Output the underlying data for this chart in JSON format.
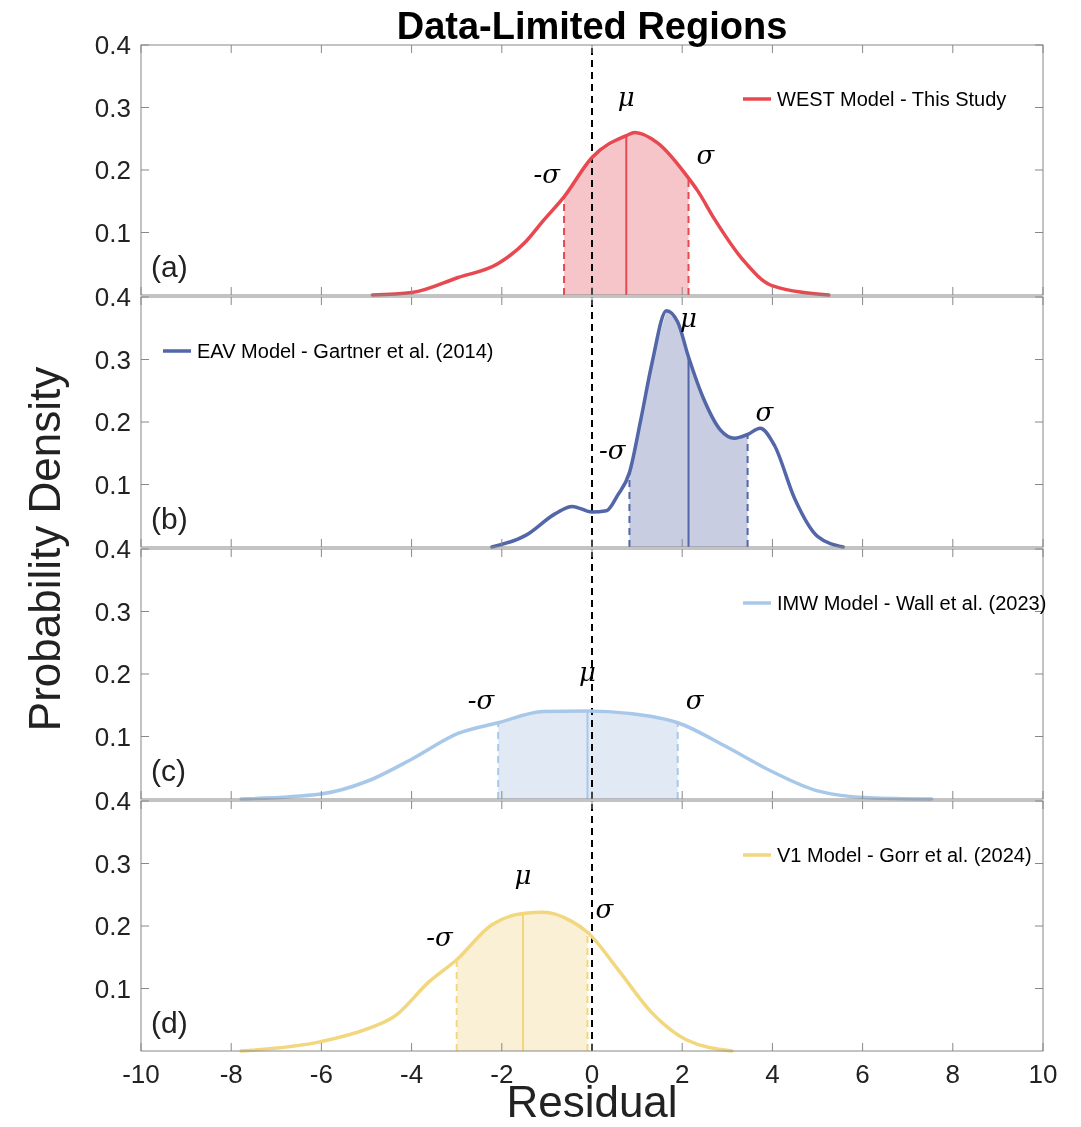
{
  "chart_data": [
    {
      "type": "line",
      "title": "Data-Limited Regions",
      "xlim": [
        -10,
        10
      ],
      "xticks": [
        -10,
        -8,
        -6,
        -4,
        -2,
        0,
        2,
        4,
        6,
        8,
        10
      ],
      "ylim": [
        0,
        0.4
      ],
      "yticks": [
        0.1,
        0.2,
        0.3,
        0.4
      ],
      "tick_labels": "y",
      "legend": "top right",
      "annotations": [
        "(a)"
      ],
      "series": [
        {
          "name": "WEST Model - This Study",
          "type": "line",
          "color": "#e8484f",
          "x": [
            -4.87,
            -3.99,
            -2.97,
            -2.09,
            -1.46,
            -1.08,
            -0.62,
            0,
            0.76,
            0.95,
            1.46,
            2.14,
            2.34,
            2.72,
            3.35,
            3.99,
            5.25
          ],
          "values": [
            0,
            0.004,
            0.028,
            0.05,
            0.086,
            0.119,
            0.157,
            0.22,
            0.255,
            0.26,
            0.243,
            0.187,
            0.167,
            0.121,
            0.056,
            0.015,
            0
          ]
        },
        {
          "type": "area",
          "color": "#f5c5c9",
          "x": [
            -0.62,
            0,
            0.76,
            0.95,
            1.46,
            2.14
          ],
          "values": [
            0.157,
            0.22,
            0.255,
            0.26,
            0.243,
            0.187
          ]
        }
      ],
      "ref_lines": [
        {
          "axis": "x",
          "value": 0,
          "color": "#000000",
          "line_style": "dashed"
        },
        {
          "axis": "x",
          "value": -0.62,
          "label": "-σ",
          "color": "#e8484f",
          "line_style": "dashed"
        },
        {
          "axis": "x",
          "value": 0.76,
          "label": "μ",
          "color": "#e8484f",
          "line_style": "solid"
        },
        {
          "axis": "x",
          "value": 2.14,
          "label": "σ",
          "color": "#e8484f",
          "line_style": "dashed"
        }
      ]
    },
    {
      "type": "line",
      "ylabel": "Probability Density",
      "xlim": [
        -10,
        10
      ],
      "xticks": [
        -10,
        -8,
        -6,
        -4,
        -2,
        0,
        2,
        4,
        6,
        8,
        10
      ],
      "ylim": [
        0,
        0.4
      ],
      "yticks": [
        0.1,
        0.2,
        0.3,
        0.4
      ],
      "tick_labels": "y",
      "legend": "top left",
      "annotations": [
        "(b)"
      ],
      "series": [
        {
          "name": "EAV Model - Gartner et al. (2014)",
          "type": "line",
          "color": "#5266a8",
          "x": [
            -2.22,
            -1.46,
            -0.82,
            -0.44,
            0,
            0.32,
            0.57,
            0.83,
            1.08,
            1.33,
            1.65,
            1.9,
            2.14,
            2.47,
            2.85,
            3.16,
            3.45,
            3.73,
            4.05,
            4.49,
            5.0,
            5.57
          ],
          "values": [
            0,
            0.019,
            0.053,
            0.065,
            0.056,
            0.058,
            0.083,
            0.119,
            0.203,
            0.294,
            0.378,
            0.36,
            0.304,
            0.238,
            0.187,
            0.174,
            0.18,
            0.19,
            0.162,
            0.078,
            0.017,
            0
          ]
        },
        {
          "type": "area",
          "color": "#c8cde1",
          "x": [
            0.83,
            1.08,
            1.33,
            1.65,
            1.9,
            2.14,
            2.47,
            2.85,
            3.16,
            3.45
          ],
          "values": [
            0.119,
            0.203,
            0.294,
            0.378,
            0.36,
            0.304,
            0.238,
            0.187,
            0.174,
            0.18
          ]
        }
      ],
      "ref_lines": [
        {
          "axis": "x",
          "value": 0,
          "color": "#000000",
          "line_style": "dashed"
        },
        {
          "axis": "x",
          "value": 0.83,
          "label": "-σ",
          "color": "#5266a8",
          "line_style": "dashed"
        },
        {
          "axis": "x",
          "value": 2.14,
          "label": "μ",
          "color": "#5266a8",
          "line_style": "solid"
        },
        {
          "axis": "x",
          "value": 3.45,
          "label": "σ",
          "color": "#5266a8",
          "line_style": "dashed"
        }
      ]
    },
    {
      "type": "line",
      "xlim": [
        -10,
        10
      ],
      "xticks": [
        -10,
        -8,
        -6,
        -4,
        -2,
        0,
        2,
        4,
        6,
        8,
        10
      ],
      "ylim": [
        0,
        0.4
      ],
      "yticks": [
        0.1,
        0.2,
        0.3,
        0.4
      ],
      "tick_labels": "y",
      "legend": "top right",
      "annotations": [
        "(c)"
      ],
      "series": [
        {
          "name": "IMW Model - Wall et al. (2023)",
          "type": "line",
          "color": "#a8c8ea",
          "x": [
            -7.78,
            -6.01,
            -5.0,
            -3.99,
            -2.97,
            -2.08,
            -1.08,
            -0.1,
            0.82,
            1.9,
            2.97,
            3.99,
            5.0,
            6.14,
            7.53
          ],
          "values": [
            0,
            0.008,
            0.028,
            0.064,
            0.105,
            0.122,
            0.14,
            0.141,
            0.137,
            0.122,
            0.084,
            0.044,
            0.013,
            0.002,
            0
          ]
        },
        {
          "type": "area",
          "color": "#e1e9f5",
          "x": [
            -2.08,
            -1.08,
            -0.1,
            0.82,
            1.9
          ],
          "values": [
            0.122,
            0.14,
            0.141,
            0.137,
            0.122
          ]
        }
      ],
      "ref_lines": [
        {
          "axis": "x",
          "value": 0,
          "color": "#000000",
          "line_style": "dashed"
        },
        {
          "axis": "x",
          "value": -2.08,
          "label": "-σ",
          "color": "#a8c8ea",
          "line_style": "dashed"
        },
        {
          "axis": "x",
          "value": -0.1,
          "label": "μ",
          "color": "#a8c8ea",
          "line_style": "solid"
        },
        {
          "axis": "x",
          "value": 1.9,
          "label": "σ",
          "color": "#a8c8ea",
          "line_style": "dashed"
        }
      ]
    },
    {
      "type": "line",
      "xlabel": "Residual",
      "xlim": [
        -10,
        10
      ],
      "xticks": [
        -10,
        -8,
        -6,
        -4,
        -2,
        0,
        2,
        4,
        6,
        8,
        10
      ],
      "ylim": [
        0,
        0.4
      ],
      "yticks": [
        0.1,
        0.2,
        0.3,
        0.4
      ],
      "legend": "top right",
      "annotations": [
        "(d)"
      ],
      "series": [
        {
          "name": "V1 Model - Gorr et al. (2024)",
          "type": "line",
          "color": "#f2d77f",
          "x": [
            -7.78,
            -6.01,
            -5.0,
            -4.37,
            -3.61,
            -3.0,
            -2.22,
            -1.53,
            -1.08,
            -0.44,
            -0.1,
            0.57,
            1.33,
            2.09,
            3.1
          ],
          "values": [
            0,
            0.015,
            0.035,
            0.056,
            0.111,
            0.146,
            0.202,
            0.22,
            0.222,
            0.207,
            0.19,
            0.131,
            0.061,
            0.018,
            0
          ]
        },
        {
          "type": "area",
          "color": "#faf0d6",
          "x": [
            -3.0,
            -2.22,
            -1.53,
            -1.08,
            -0.44,
            -0.1
          ],
          "values": [
            0.146,
            0.202,
            0.22,
            0.222,
            0.207,
            0.19
          ]
        }
      ],
      "ref_lines": [
        {
          "axis": "x",
          "value": 0,
          "color": "#000000",
          "line_style": "dashed"
        },
        {
          "axis": "x",
          "value": -3.0,
          "label": "-σ",
          "color": "#f2d77f",
          "line_style": "dashed"
        },
        {
          "axis": "x",
          "value": -1.53,
          "label": "μ",
          "color": "#f2d77f",
          "line_style": "solid"
        },
        {
          "axis": "x",
          "value": -0.1,
          "label": "σ",
          "color": "#f2d77f",
          "line_style": "dashed"
        }
      ]
    }
  ]
}
